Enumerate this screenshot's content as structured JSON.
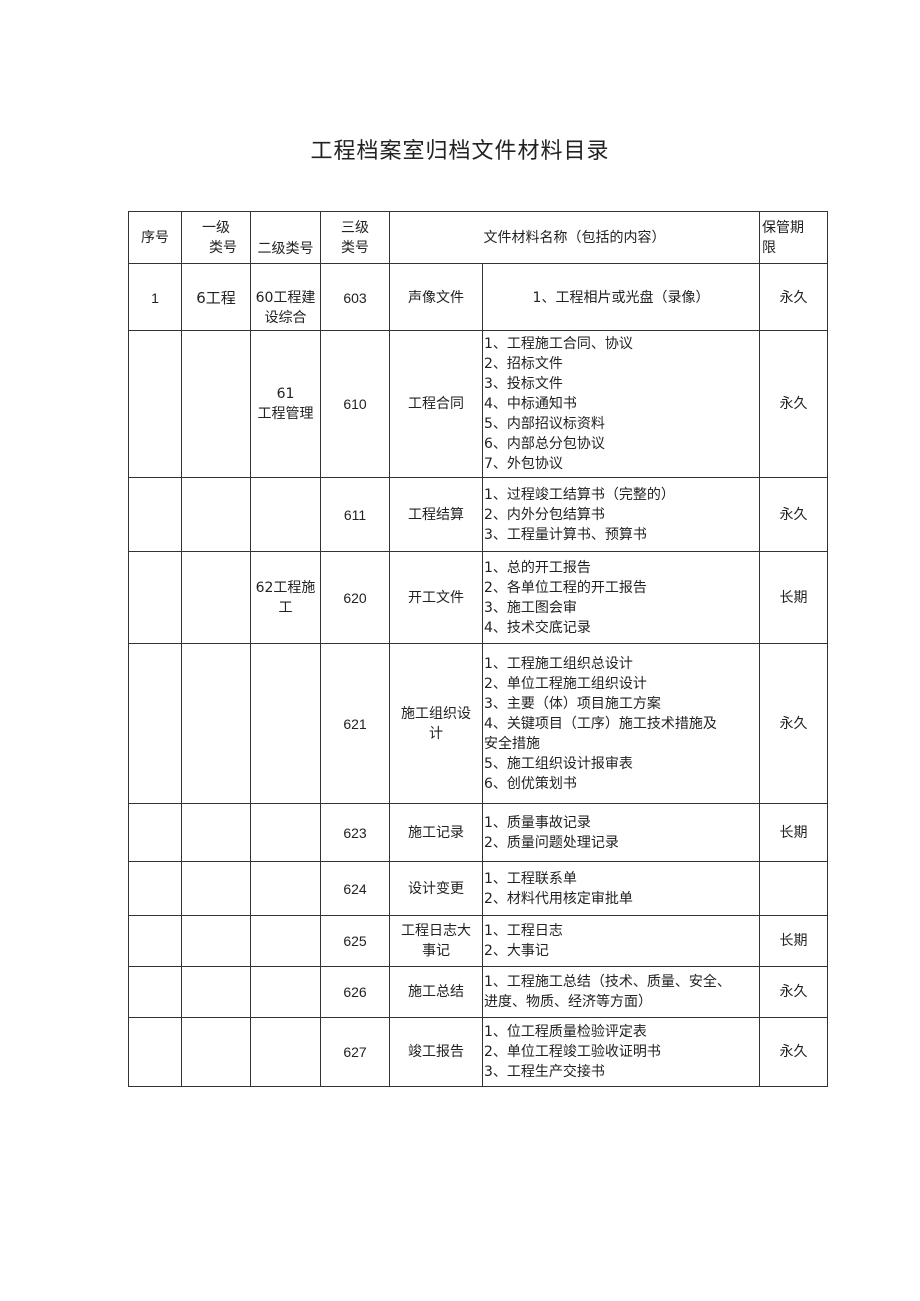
{
  "title": "工程档案室归档文件材料目录",
  "headers": {
    "seq": "序号",
    "level1": [
      "一级",
      "类号"
    ],
    "level2": "二级类号",
    "level3": [
      "三级",
      "类号"
    ],
    "name": "文件材料名称（包括的内容）",
    "retention": [
      "保管期",
      "限"
    ]
  },
  "rows": [
    {
      "seq": "1",
      "level1": "6工程",
      "level2": [
        "60工程建",
        "设综合"
      ],
      "code": "603",
      "name": [
        "声像文件"
      ],
      "items": [
        "1、工程相片或光盘（录像）"
      ],
      "retention": "永久"
    },
    {
      "seq": "",
      "level1": "",
      "level2": [
        "61",
        "工程管理"
      ],
      "code": "610",
      "name": [
        "工程合同"
      ],
      "items": [
        "1、工程施工合同、协议",
        "2、招标文件",
        "3、投标文件",
        "4、中标通知书",
        "5、内部招议标资料",
        "6、内部总分包协议",
        "7、外包协议"
      ],
      "retention": "永久"
    },
    {
      "seq": "",
      "level1": "",
      "level2": [],
      "code": "611",
      "name": [
        "工程结算"
      ],
      "items": [
        "1、过程竣工结算书（完整的）",
        "2、内外分包结算书",
        "3、工程量计算书、预算书"
      ],
      "retention": "永久"
    },
    {
      "seq": "",
      "level1": "",
      "level2": [
        "62工程施",
        "工"
      ],
      "code": "620",
      "name": [
        "开工文件"
      ],
      "items": [
        "1、总的开工报告",
        "2、各单位工程的开工报告",
        "3、施工图会审",
        "4、技术交底记录"
      ],
      "retention": "长期"
    },
    {
      "seq": "",
      "level1": "",
      "level2": [],
      "code": "621",
      "name": [
        "施工组织设",
        "计"
      ],
      "items": [
        "1、工程施工组织总设计",
        "2、单位工程施工组织设计",
        "3、主要（体）项目施工方案",
        "4、关键项目（工序）施工技术措施及",
        "安全措施",
        "5、施工组织设计报审表",
        "6、创优策划书"
      ],
      "retention": "永久"
    },
    {
      "seq": "",
      "level1": "",
      "level2": [],
      "code": "623",
      "name": [
        "施工记录"
      ],
      "items": [
        "1、质量事故记录",
        "2、质量问题处理记录"
      ],
      "retention": "长期"
    },
    {
      "seq": "",
      "level1": "",
      "level2": [],
      "code": "624",
      "name": [
        "设计变更"
      ],
      "items": [
        "1、工程联系单",
        "2、材料代用核定审批单"
      ],
      "retention": ""
    },
    {
      "seq": "",
      "level1": "",
      "level2": [],
      "code": "625",
      "name": [
        "工程日志大",
        "事记"
      ],
      "items": [
        "1、工程日志",
        "2、大事记"
      ],
      "retention": "长期"
    },
    {
      "seq": "",
      "level1": "",
      "level2": [],
      "code": "626",
      "name": [
        "施工总结"
      ],
      "items": [
        "1、工程施工总结（技术、质量、安全、",
        "进度、物质、经济等方面）"
      ],
      "retention": "永久"
    },
    {
      "seq": "",
      "level1": "",
      "level2": [],
      "code": "627",
      "name": [
        "竣工报告"
      ],
      "items": [
        "1、位工程质量检验评定表",
        "2、单位工程竣工验收证明书",
        "3、工程生产交接书"
      ],
      "retention": "永久"
    }
  ]
}
